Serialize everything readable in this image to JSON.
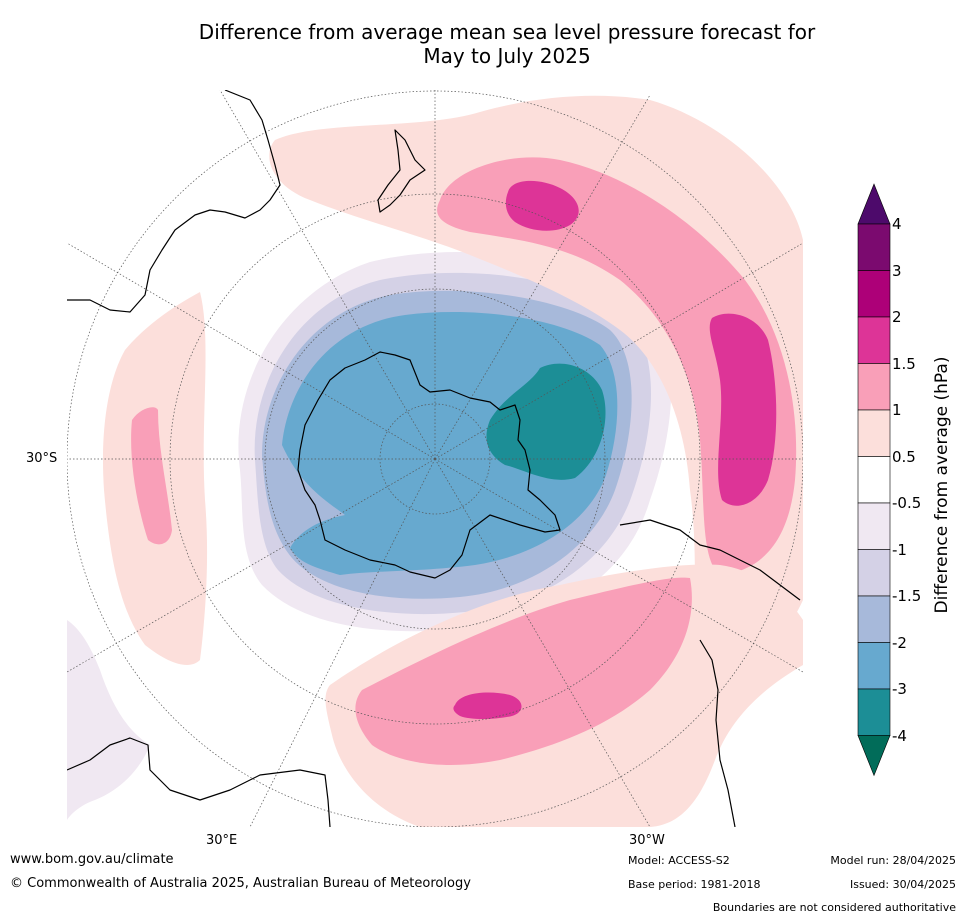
{
  "title": {
    "line1": "Difference from average mean sea level pressure forecast for",
    "line2": "May to July 2025"
  },
  "map": {
    "projection": "south-polar-stereographic",
    "axis_labels": {
      "lat_left": "30°S",
      "lon_bottom_left": "30°E",
      "lon_bottom_right": "30°W"
    },
    "colors": {
      "land_outline": "#000000",
      "graticule": "#555555",
      "boundary": "#777777"
    }
  },
  "colorbar": {
    "title": "Difference from average (hPa)",
    "tick_labels": [
      "4",
      "3",
      "2",
      "1.5",
      "1",
      "0.5",
      "-0.5",
      "-1",
      "-1.5",
      "-2",
      "-3",
      "-4"
    ],
    "bins": [
      {
        "range": "3 to 4",
        "color": "#7b0a6f"
      },
      {
        "range": "2 to 3",
        "color": "#ad0078"
      },
      {
        "range": "1.5 to 2",
        "color": "#dd3497"
      },
      {
        "range": "1 to 1.5",
        "color": "#f99fb8"
      },
      {
        "range": "0.5 to 1",
        "color": "#fcdfdb"
      },
      {
        "range": "-0.5 to 0.5",
        "color": "#ffffff"
      },
      {
        "range": "-1 to -0.5",
        "color": "#f0e8f2"
      },
      {
        "range": "-1.5 to -1",
        "color": "#d4d1e6"
      },
      {
        "range": "-2 to -1.5",
        "color": "#a7b9da"
      },
      {
        "range": "-3 to -2",
        "color": "#67a9cf"
      },
      {
        "range": "-4 to -3",
        "color": "#1c8e96"
      }
    ],
    "extend_high_color": "#4d0a6b",
    "extend_low_color": "#016c59"
  },
  "footer": {
    "website": "www.bom.gov.au/climate",
    "copyright": "© Commonwealth of Australia 2025, Australian Bureau of Meteorology",
    "model": "Model: ACCESS-S2",
    "base_period": "Base period: 1981-2018",
    "model_run": "Model run: 28/04/2025",
    "issued": "Issued: 30/04/2025",
    "disclaimer": "Boundaries are not considered authoritative"
  }
}
